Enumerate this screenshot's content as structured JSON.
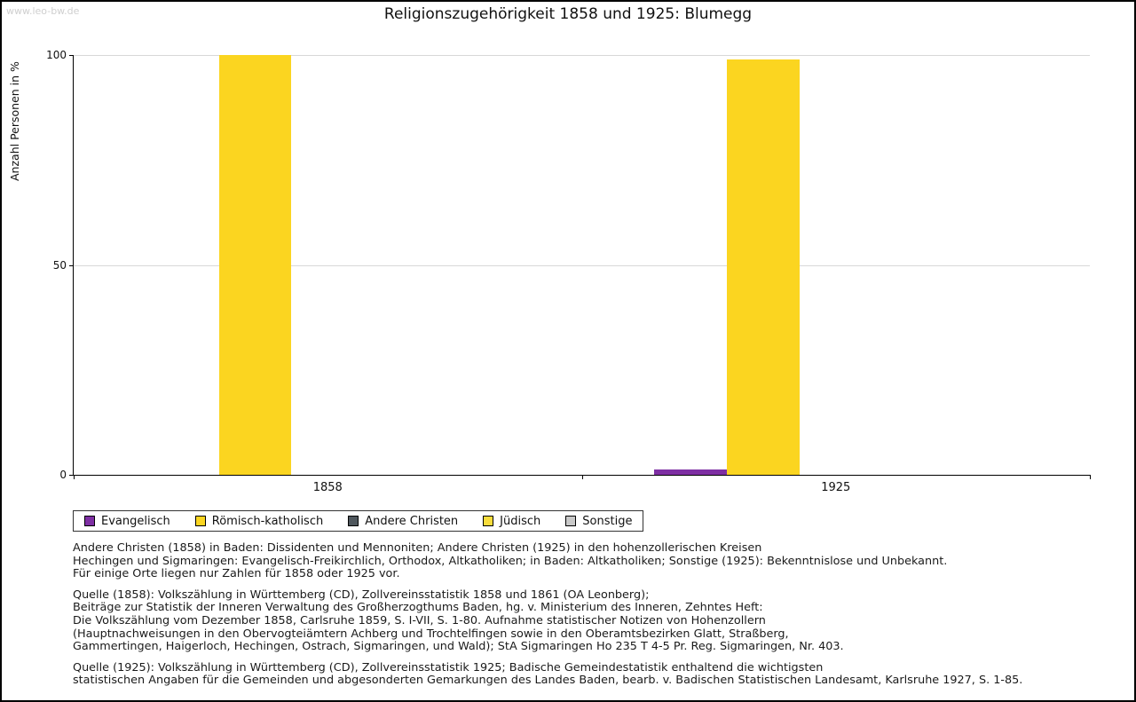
{
  "watermark": "www.leo-bw.de",
  "title": "Religionszugehörigkeit 1858 und 1925: Blumegg",
  "chart_data": {
    "type": "bar",
    "title": "Religionszugehörigkeit 1858 und 1925: Blumegg",
    "xlabel": "",
    "ylabel": "Anzahl Personen in %",
    "ylim": [
      0,
      100
    ],
    "yticks": [
      0,
      50,
      100
    ],
    "grid": "horizontal",
    "legend_position": "bottom",
    "categories": [
      "1858",
      "1925"
    ],
    "series": [
      {
        "name": "Evangelisch",
        "color": "#7e2fa3",
        "values": [
          0,
          1.2
        ]
      },
      {
        "name": "Römisch-katholisch",
        "color": "#fbd520",
        "values": [
          100,
          99
        ]
      },
      {
        "name": "Andere Christen",
        "color": "#4f575d",
        "values": [
          0,
          0
        ]
      },
      {
        "name": "Jüdisch",
        "color": "#f8dc3c",
        "values": [
          0,
          0
        ]
      },
      {
        "name": "Sonstige",
        "color": "#c9c9c9",
        "values": [
          0,
          0
        ]
      }
    ]
  },
  "notes": [
    "Andere Christen (1858) in Baden: Dissidenten und Mennoniten; Andere Christen (1925) in den hohenzollerischen Kreisen\nHechingen und Sigmaringen: Evangelisch-Freikirchlich, Orthodox, Altkatholiken; in Baden: Altkatholiken; Sonstige (1925): Bekenntnislose und Unbekannt.\nFür einige Orte liegen nur Zahlen für 1858 oder 1925 vor.",
    "Quelle (1858): Volkszählung in Württemberg (CD), Zollvereinsstatistik 1858 und 1861 (OA Leonberg);\nBeiträge zur Statistik der Inneren Verwaltung des Großherzogthums Baden, hg. v. Ministerium des Inneren, Zehntes Heft:\nDie Volkszählung vom Dezember 1858, Carlsruhe 1859, S. I-VII, S. 1-80. Aufnahme statistischer Notizen von Hohenzollern\n(Hauptnachweisungen in den Obervogteiämtern Achberg und Trochtelfingen sowie in den Oberamtsbezirken Glatt, Straßberg,\nGammertingen, Haigerloch, Hechingen, Ostrach, Sigmaringen, und Wald); StA Sigmaringen Ho 235 T 4-5 Pr. Reg. Sigmaringen, Nr. 403.",
    "Quelle (1925): Volkszählung in Württemberg (CD), Zollvereinsstatistik 1925; Badische Gemeindestatistik enthaltend die wichtigsten\nstatistischen Angaben für die Gemeinden und abgesonderten Gemarkungen des Landes Baden, bearb. v. Badischen Statistischen Landesamt, Karlsruhe 1927, S. 1-85."
  ]
}
